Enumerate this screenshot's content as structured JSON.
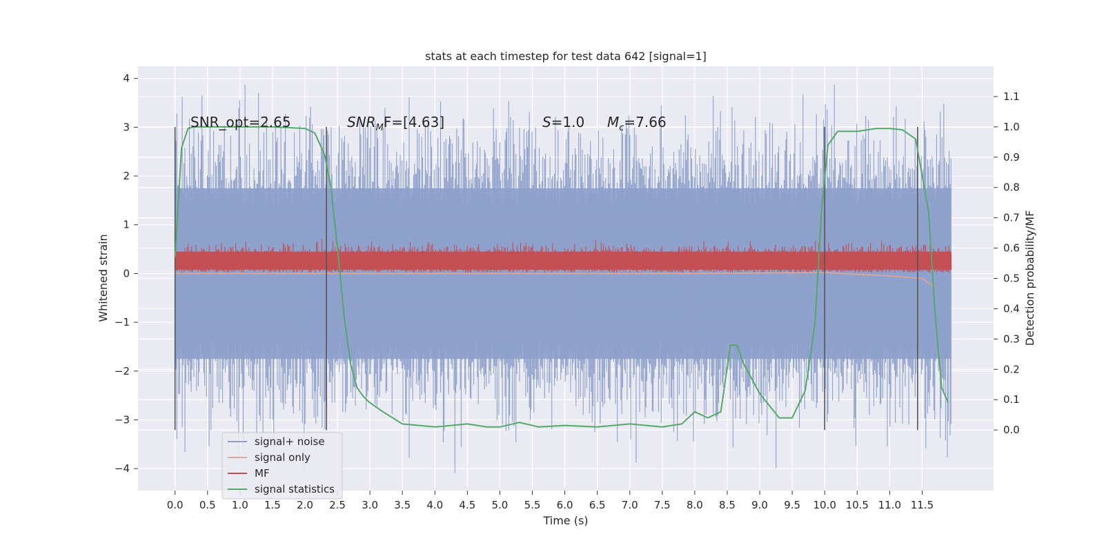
{
  "chart_data": {
    "type": "line",
    "title": "stats at each timestep for test data 642 [signal=1]",
    "xlabel": "Time (s)",
    "ylabel": "Whitened strain",
    "ylabel_right": "Detection probability/MF",
    "xlim": [
      -0.57,
      12.6
    ],
    "ylim": [
      -4.45,
      4.25
    ],
    "ylim_right": [
      -0.2,
      1.2
    ],
    "x_ticks": [
      "0.0",
      "0.5",
      "1.0",
      "1.5",
      "2.0",
      "2.5",
      "3.0",
      "3.5",
      "4.0",
      "4.5",
      "5.0",
      "5.5",
      "6.0",
      "6.5",
      "7.0",
      "7.5",
      "8.0",
      "8.5",
      "9.0",
      "9.5",
      "10.0",
      "10.5",
      "11.0",
      "11.5"
    ],
    "y_ticks": [
      "4",
      "3",
      "2",
      "1",
      "0",
      "−1",
      "−2",
      "−3",
      "−4"
    ],
    "y_ticks_right": [
      "1.1",
      "1.0",
      "0.9",
      "0.8",
      "0.7",
      "0.6",
      "0.5",
      "0.4",
      "0.3",
      "0.2",
      "0.1",
      "0.0"
    ],
    "grid": true,
    "legend_position": "lower-left",
    "colors": {
      "signal_noise": "#8da0cb",
      "signal_only": "#e8a589",
      "mf": "#c44e52",
      "signal_statistics": "#55a868",
      "markers": "#555555",
      "background": "#eaeaf2"
    },
    "annotations": {
      "snr_opt": "SNR_opt=2.65",
      "snr_mf_prefix": "SNR",
      "snr_mf_sub": "M",
      "snr_mf_suffix": "F=[4.63]",
      "s_label": "S",
      "s_value": "=1.0",
      "mc_label": "M",
      "mc_sub": "c",
      "mc_value": "=7.66"
    },
    "vertical_markers": [
      0.0,
      2.33,
      10.0,
      11.43
    ],
    "series": [
      {
        "name": "signal+ noise",
        "kind": "noise",
        "x_range": [
          0.0,
          11.95
        ],
        "typical_range": [
          -1.75,
          1.75
        ],
        "max": 3.87,
        "min": -4.1
      },
      {
        "name": "signal only",
        "kind": "signal",
        "x": [
          0.0,
          8.0,
          9.0,
          10.0,
          11.0,
          11.5,
          11.7
        ],
        "y": [
          0.0,
          0.0,
          0.01,
          0.02,
          -0.05,
          -0.1,
          -0.28
        ]
      },
      {
        "name": "MF",
        "kind": "mf",
        "x_range": [
          0.0,
          11.95
        ],
        "typical_range": [
          0.03,
          0.53
        ],
        "max": 1.0
      },
      {
        "name": "signal statistics",
        "kind": "statistics",
        "axis": "right",
        "x": [
          0.0,
          0.1,
          0.2,
          0.3,
          0.5,
          1.0,
          1.5,
          2.0,
          2.15,
          2.3,
          2.4,
          2.5,
          2.6,
          2.7,
          2.8,
          2.9,
          3.0,
          3.2,
          3.5,
          4.0,
          4.5,
          4.8,
          5.0,
          5.3,
          5.6,
          6.0,
          6.5,
          7.0,
          7.5,
          7.8,
          8.0,
          8.2,
          8.4,
          8.55,
          8.65,
          8.75,
          9.0,
          9.3,
          9.5,
          9.7,
          9.85,
          9.95,
          10.05,
          10.2,
          10.5,
          10.8,
          11.0,
          11.2,
          11.4,
          11.6,
          11.7,
          11.8,
          11.9
        ],
        "y": [
          0.57,
          0.93,
          0.995,
          1.0,
          1.0,
          1.0,
          1.0,
          0.995,
          0.98,
          0.91,
          0.8,
          0.6,
          0.38,
          0.22,
          0.14,
          0.11,
          0.09,
          0.06,
          0.02,
          0.01,
          0.02,
          0.01,
          0.01,
          0.025,
          0.01,
          0.015,
          0.01,
          0.02,
          0.01,
          0.02,
          0.06,
          0.04,
          0.06,
          0.28,
          0.28,
          0.22,
          0.12,
          0.04,
          0.04,
          0.13,
          0.35,
          0.72,
          0.94,
          0.985,
          0.985,
          0.995,
          0.995,
          0.99,
          0.96,
          0.72,
          0.38,
          0.14,
          0.09
        ]
      }
    ]
  },
  "legend": {
    "items": [
      {
        "label": "signal+ noise",
        "color": "#8da0cb"
      },
      {
        "label": "signal only",
        "color": "#e8a589"
      },
      {
        "label": "MF",
        "color": "#c44e52"
      },
      {
        "label": "signal statistics",
        "color": "#55a868"
      }
    ]
  }
}
